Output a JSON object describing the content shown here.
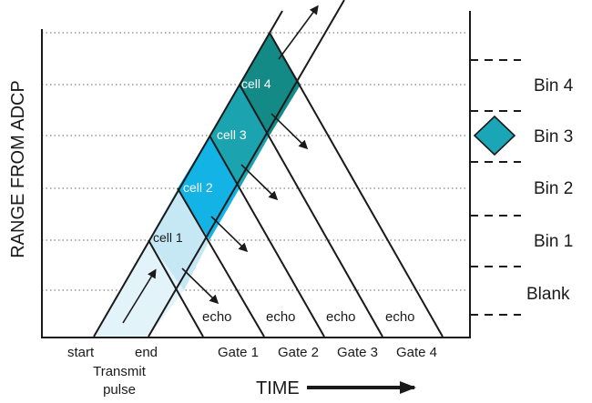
{
  "axes": {
    "y_label": "RANGE FROM ADCP",
    "x_label": "TIME"
  },
  "x_ticks": [
    "start",
    "end",
    "Gate 1",
    "Gate 2",
    "Gate 3",
    "Gate 4"
  ],
  "transmit_label": [
    "Transmit",
    "pulse"
  ],
  "echo_labels": [
    "echo",
    "echo",
    "echo",
    "echo"
  ],
  "cells": [
    {
      "label": "cell 1",
      "color": "#c6e8f5"
    },
    {
      "label": "cell 2",
      "color": "#13b3e6"
    },
    {
      "label": "cell 3",
      "color": "#1ca3b0"
    },
    {
      "label": "cell 4",
      "color": "#148a87"
    }
  ],
  "pulse_color": "#e3f3fa",
  "bins": [
    "Bin 4",
    "Bin 3",
    "Bin 2",
    "Bin 1",
    "Blank"
  ],
  "marker_color": "#1aa6b6"
}
